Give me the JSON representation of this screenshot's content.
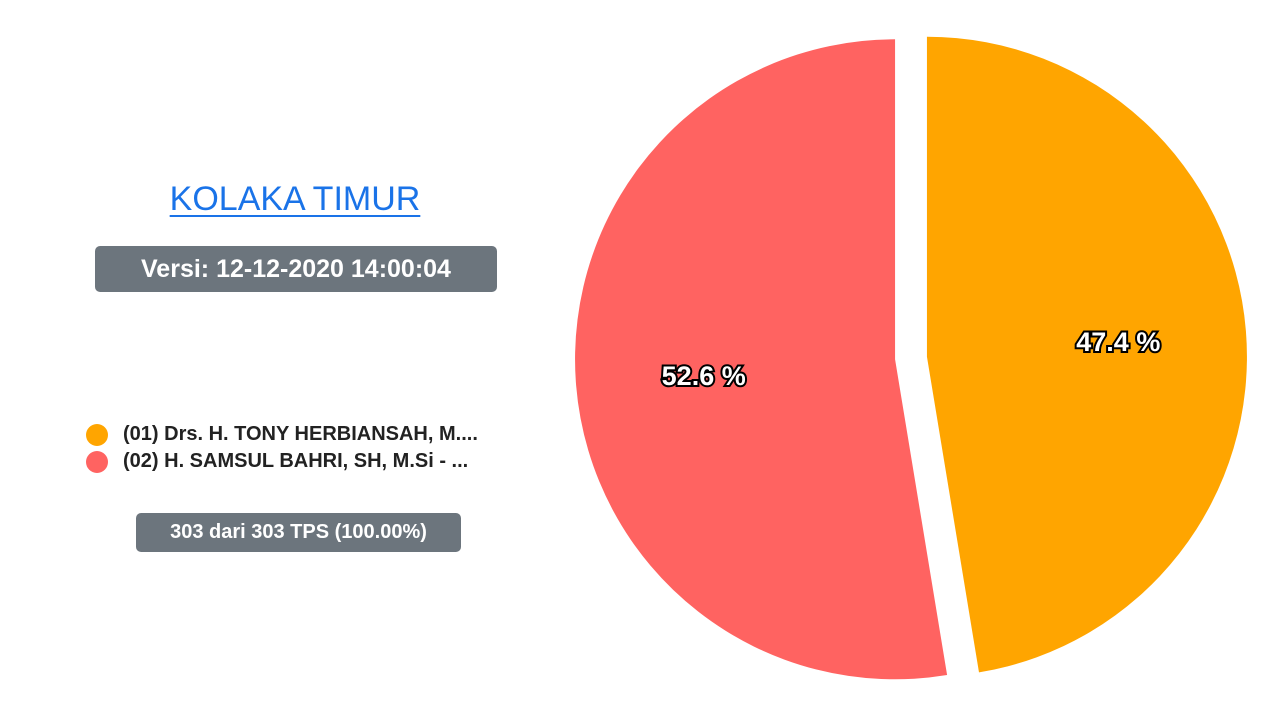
{
  "header": {
    "title": "KOLAKA TIMUR",
    "version": "Versi: 12-12-2020 14:00:04"
  },
  "footer": {
    "tps": "303 dari 303 TPS (100.00%)"
  },
  "chart_data": {
    "type": "pie",
    "categories": [
      "(01) Drs. H. TONY HERBIANSAH, M....",
      "(02) H. SAMSUL BAHRI, SH, M.Si - ..."
    ],
    "values": [
      47.4,
      52.6
    ],
    "labels": [
      "47.4 %",
      "52.6 %"
    ],
    "colors": [
      "#ffa500",
      "#ff6361"
    ],
    "legend": "left"
  }
}
